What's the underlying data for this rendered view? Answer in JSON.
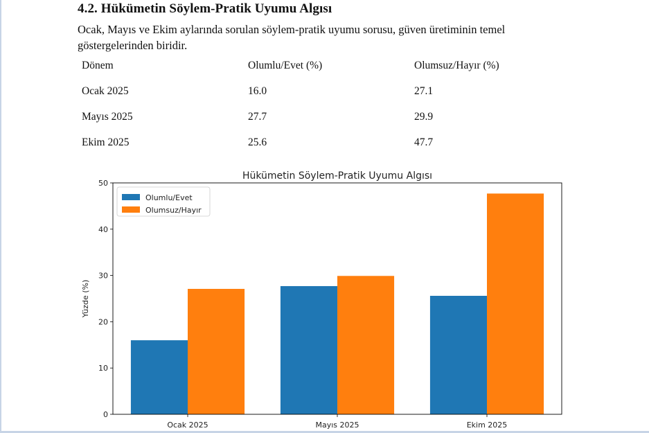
{
  "section": {
    "title": "4.2. Hükümetin Söylem-Pratik Uyumu Algısı",
    "intro": "Ocak, Mayıs ve Ekim aylarında sorulan söylem-pratik uyumu sorusu, güven üretiminin temel göstergelerinden biridir."
  },
  "table": {
    "headers": [
      "Dönem",
      "Olumlu/Evet (%)",
      "Olumsuz/Hayır (%)"
    ],
    "rows": [
      [
        "Ocak 2025",
        "16.0",
        "27.1"
      ],
      [
        "Mayıs 2025",
        "27.7",
        "29.9"
      ],
      [
        "Ekim 2025",
        "25.6",
        "47.7"
      ]
    ]
  },
  "chart_data": {
    "type": "bar",
    "title": "Hükümetin Söylem-Pratik Uyumu Algısı",
    "xlabel": "",
    "ylabel": "Yüzde (%)",
    "categories": [
      "Ocak 2025",
      "Mayıs 2025",
      "Ekim 2025"
    ],
    "series": [
      {
        "name": "Olumlu/Evet",
        "values": [
          16.0,
          27.7,
          25.6
        ],
        "color": "#1f77b4"
      },
      {
        "name": "Olumsuz/Hayır",
        "values": [
          27.1,
          29.9,
          47.7
        ],
        "color": "#ff7f0e"
      }
    ],
    "ylim": [
      0,
      50
    ],
    "yticks": [
      "0",
      "10",
      "20",
      "30",
      "40",
      "50"
    ],
    "legend": "top-left",
    "grid": false
  }
}
